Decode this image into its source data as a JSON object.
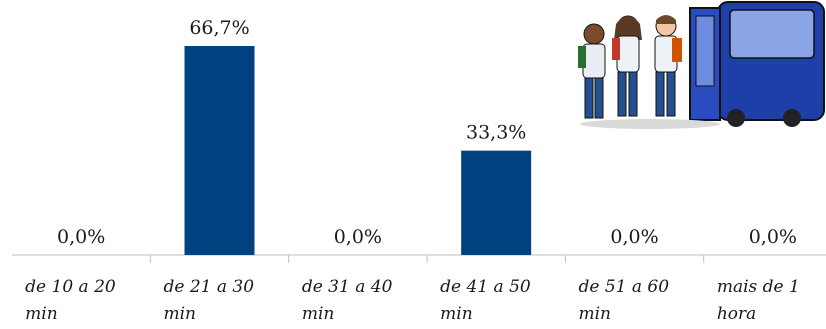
{
  "chart_data": {
    "type": "bar",
    "categories": [
      [
        "de 10 a 20",
        "min"
      ],
      [
        "de 21 a 30",
        "min"
      ],
      [
        "de 31 a 40",
        "min"
      ],
      [
        "de 41 a 50",
        "min"
      ],
      [
        "de 51 a 60",
        "min"
      ],
      [
        "mais de 1",
        "hora"
      ]
    ],
    "values": [
      0.0,
      66.7,
      0.0,
      33.3,
      0.0,
      0.0
    ],
    "value_labels": [
      "0,0%",
      "66,7%",
      "0,0%",
      "33,3%",
      "0,0%",
      "0,0%"
    ],
    "ylim": [
      0,
      66.7
    ],
    "bar_color": "#00427f",
    "grid": false,
    "legend": "none",
    "title": "",
    "xlabel": "",
    "ylabel": ""
  },
  "illustration": {
    "icon": "students-boarding-bus-illustration",
    "colors": {
      "bus": "#1f3fa8",
      "frame": "#1a1a1a"
    }
  }
}
